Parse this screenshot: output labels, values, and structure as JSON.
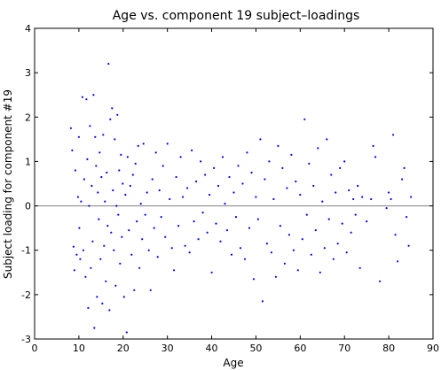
{
  "chart_data": {
    "type": "scatter",
    "title": "Age vs. component 19 subject–loadings",
    "xlabel": "Age",
    "ylabel": "Subject loading for component #19",
    "xlim": [
      0,
      90
    ],
    "ylim": [
      -3,
      4
    ],
    "xticks": [
      0,
      10,
      20,
      30,
      40,
      50,
      60,
      70,
      80,
      90
    ],
    "yticks": [
      -3,
      -2,
      -1,
      0,
      1,
      2,
      3,
      4
    ],
    "reference_line": {
      "y": 0,
      "color": "#808080"
    },
    "marker_color": "#0000ff",
    "grid": false,
    "points": [
      [
        8.2,
        1.75
      ],
      [
        8.5,
        1.25
      ],
      [
        8.8,
        -0.92
      ],
      [
        9.0,
        -1.45
      ],
      [
        9.2,
        0.8
      ],
      [
        9.5,
        -1.1
      ],
      [
        9.8,
        0.2
      ],
      [
        10.0,
        1.55
      ],
      [
        10.1,
        -0.5
      ],
      [
        10.3,
        -1.2
      ],
      [
        10.5,
        0.1
      ],
      [
        10.8,
        2.45
      ],
      [
        11.0,
        -1.0
      ],
      [
        11.2,
        0.6
      ],
      [
        11.5,
        -1.6
      ],
      [
        11.7,
        2.4
      ],
      [
        11.9,
        1.05
      ],
      [
        12.1,
        -2.3
      ],
      [
        12.3,
        0.0
      ],
      [
        12.5,
        1.8
      ],
      [
        12.7,
        -1.4
      ],
      [
        12.9,
        0.45
      ],
      [
        13.1,
        -0.8
      ],
      [
        13.3,
        2.5
      ],
      [
        13.5,
        -2.75
      ],
      [
        13.7,
        1.55
      ],
      [
        13.9,
        0.9
      ],
      [
        14.1,
        -2.05
      ],
      [
        14.3,
        0.3
      ],
      [
        14.5,
        -0.3
      ],
      [
        14.7,
        1.2
      ],
      [
        14.9,
        -1.2
      ],
      [
        15.1,
        0.65
      ],
      [
        15.3,
        -2.2
      ],
      [
        15.5,
        1.6
      ],
      [
        15.7,
        -0.9
      ],
      [
        15.9,
        0.1
      ],
      [
        16.1,
        -1.7
      ],
      [
        16.3,
        0.75
      ],
      [
        16.5,
        -0.45
      ],
      [
        16.7,
        3.2
      ],
      [
        16.9,
        -2.35
      ],
      [
        17.1,
        1.95
      ],
      [
        17.3,
        -0.6
      ],
      [
        17.5,
        2.2
      ],
      [
        17.7,
        0.35
      ],
      [
        17.9,
        -1.0
      ],
      [
        18.1,
        1.5
      ],
      [
        18.3,
        -1.8
      ],
      [
        18.5,
        0.0
      ],
      [
        18.7,
        2.05
      ],
      [
        18.9,
        -0.2
      ],
      [
        19.1,
        0.8
      ],
      [
        19.3,
        -1.3
      ],
      [
        19.5,
        1.15
      ],
      [
        19.7,
        -0.7
      ],
      [
        19.9,
        0.5
      ],
      [
        20.2,
        -2.05
      ],
      [
        20.5,
        0.25
      ],
      [
        20.8,
        -2.85
      ],
      [
        21.0,
        1.1
      ],
      [
        21.3,
        -0.55
      ],
      [
        21.6,
        0.45
      ],
      [
        21.9,
        -1.1
      ],
      [
        22.2,
        0.7
      ],
      [
        22.5,
        -1.9
      ],
      [
        22.8,
        0.95
      ],
      [
        23.1,
        -0.35
      ],
      [
        23.4,
        1.35
      ],
      [
        23.7,
        -1.4
      ],
      [
        24.0,
        0.05
      ],
      [
        24.3,
        -0.75
      ],
      [
        24.6,
        1.4
      ],
      [
        25.0,
        -0.2
      ],
      [
        25.4,
        0.3
      ],
      [
        25.8,
        -1.0
      ],
      [
        26.2,
        -1.9
      ],
      [
        26.6,
        0.6
      ],
      [
        27.0,
        -0.5
      ],
      [
        27.4,
        1.2
      ],
      [
        27.8,
        -1.15
      ],
      [
        28.2,
        0.35
      ],
      [
        28.6,
        -0.25
      ],
      [
        29.0,
        0.9
      ],
      [
        29.5,
        -0.7
      ],
      [
        30.0,
        1.4
      ],
      [
        30.5,
        0.15
      ],
      [
        31.0,
        -0.95
      ],
      [
        31.5,
        -1.45
      ],
      [
        32.0,
        0.65
      ],
      [
        32.5,
        -0.45
      ],
      [
        33.0,
        1.1
      ],
      [
        33.5,
        0.2
      ],
      [
        34.0,
        -0.9
      ],
      [
        34.5,
        0.4
      ],
      [
        35.0,
        -1.05
      ],
      [
        35.5,
        1.25
      ],
      [
        36.0,
        -0.35
      ],
      [
        36.5,
        0.55
      ],
      [
        37.0,
        -0.75
      ],
      [
        37.5,
        1.0
      ],
      [
        38.0,
        -0.15
      ],
      [
        38.5,
        0.7
      ],
      [
        39.0,
        -0.6
      ],
      [
        39.5,
        0.25
      ],
      [
        40.0,
        -1.5
      ],
      [
        40.5,
        0.85
      ],
      [
        41.0,
        -0.4
      ],
      [
        41.5,
        0.45
      ],
      [
        42.0,
        -0.8
      ],
      [
        42.5,
        1.1
      ],
      [
        43.0,
        0.05
      ],
      [
        43.5,
        -0.55
      ],
      [
        44.0,
        0.65
      ],
      [
        44.5,
        -1.1
      ],
      [
        45.0,
        0.3
      ],
      [
        45.5,
        -0.25
      ],
      [
        46.0,
        0.9
      ],
      [
        46.5,
        -0.95
      ],
      [
        47.0,
        0.5
      ],
      [
        47.5,
        -1.2
      ],
      [
        48.0,
        1.2
      ],
      [
        48.5,
        -0.5
      ],
      [
        49.0,
        0.75
      ],
      [
        49.5,
        -1.65
      ],
      [
        50.0,
        0.2
      ],
      [
        50.5,
        -0.3
      ],
      [
        51.0,
        1.5
      ],
      [
        51.5,
        -2.15
      ],
      [
        52.0,
        0.6
      ],
      [
        52.5,
        -0.85
      ],
      [
        53.0,
        1.0
      ],
      [
        53.5,
        -1.05
      ],
      [
        54.0,
        0.15
      ],
      [
        54.5,
        -1.6
      ],
      [
        55.0,
        1.35
      ],
      [
        55.5,
        -0.45
      ],
      [
        56.0,
        0.85
      ],
      [
        56.5,
        -1.3
      ],
      [
        57.0,
        0.4
      ],
      [
        57.5,
        -0.65
      ],
      [
        58.0,
        1.15
      ],
      [
        58.5,
        -1.0
      ],
      [
        59.0,
        0.55
      ],
      [
        59.5,
        -1.45
      ],
      [
        60.0,
        0.25
      ],
      [
        60.5,
        -0.75
      ],
      [
        61.0,
        1.95
      ],
      [
        61.5,
        -0.2
      ],
      [
        62.0,
        0.95
      ],
      [
        62.5,
        -1.1
      ],
      [
        63.0,
        0.45
      ],
      [
        63.5,
        -0.55
      ],
      [
        64.0,
        1.3
      ],
      [
        64.5,
        -1.5
      ],
      [
        65.0,
        0.1
      ],
      [
        65.5,
        -0.95
      ],
      [
        66.0,
        1.5
      ],
      [
        66.5,
        -0.3
      ],
      [
        67.0,
        0.7
      ],
      [
        67.5,
        -1.2
      ],
      [
        68.0,
        0.3
      ],
      [
        68.5,
        -0.85
      ],
      [
        69.0,
        0.85
      ],
      [
        69.5,
        -0.4
      ],
      [
        70.0,
        1.0
      ],
      [
        70.5,
        -1.05
      ],
      [
        71.0,
        0.35
      ],
      [
        71.5,
        -0.6
      ],
      [
        72.0,
        0.15
      ],
      [
        72.5,
        -0.2
      ],
      [
        73.0,
        0.45
      ],
      [
        73.5,
        -1.4
      ],
      [
        74.0,
        0.2
      ],
      [
        75.0,
        -0.35
      ],
      [
        76.0,
        0.15
      ],
      [
        76.5,
        1.35
      ],
      [
        77.0,
        1.1
      ],
      [
        78.0,
        -1.7
      ],
      [
        80.0,
        0.3
      ],
      [
        80.5,
        0.15
      ],
      [
        81.0,
        1.6
      ],
      [
        81.5,
        -0.65
      ],
      [
        82.0,
        -1.25
      ],
      [
        83.0,
        0.6
      ],
      [
        83.5,
        0.85
      ],
      [
        84.0,
        -0.25
      ],
      [
        85.0,
        0.2
      ],
      [
        84.5,
        -0.9
      ],
      [
        79.5,
        -0.05
      ]
    ]
  }
}
